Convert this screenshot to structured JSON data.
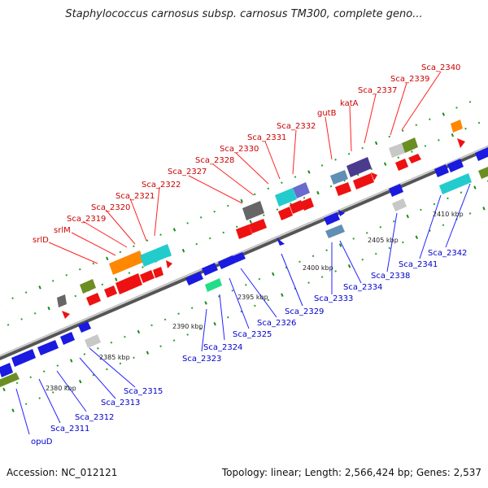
{
  "title": "Staphylococcus carnosus subsp. carnosus TM300, complete geno...",
  "accession": "Accession: NC_012121",
  "topology": "Topology: linear; Length: 2,566,424 bp; Genes: 2,537",
  "colors": {
    "forward_label": "#cc0000",
    "reverse_label": "#0000cc",
    "red": "#ee1111",
    "blue": "#1a1ae0",
    "orange": "#ff8800",
    "cyan": "#22cccc",
    "olive": "#6b8e23",
    "gray": "#666666",
    "lightgray": "#c8c8c8",
    "purple": "#4b3b8f",
    "steel": "#5f8fb4",
    "green": "#22dd88",
    "axis": "#999999"
  },
  "scale_labels": [
    "2380 kbp",
    "2385 kbp",
    "2390 kbp",
    "2395 kbp",
    "2400 kbp",
    "2405 kbp",
    "2410 kbp"
  ],
  "forward_labels": [
    "srlD",
    "srlM",
    "Sca_2319",
    "Sca_2320",
    "Sca_2321",
    "Sca_2322",
    "Sca_2327",
    "Sca_2328",
    "Sca_2330",
    "Sca_2331",
    "Sca_2332",
    "gutB",
    "katA",
    "Sca_2337",
    "Sca_2339",
    "Sca_2340"
  ],
  "reverse_labels": [
    "opuD",
    "Sca_2311",
    "Sca_2312",
    "Sca_2313",
    "Sca_2315",
    "Sca_2323",
    "Sca_2324",
    "Sca_2325",
    "Sca_2326",
    "Sca_2329",
    "Sca_2333",
    "Sca_2334",
    "Sca_2338",
    "Sca_2341",
    "Sca_2342"
  ]
}
